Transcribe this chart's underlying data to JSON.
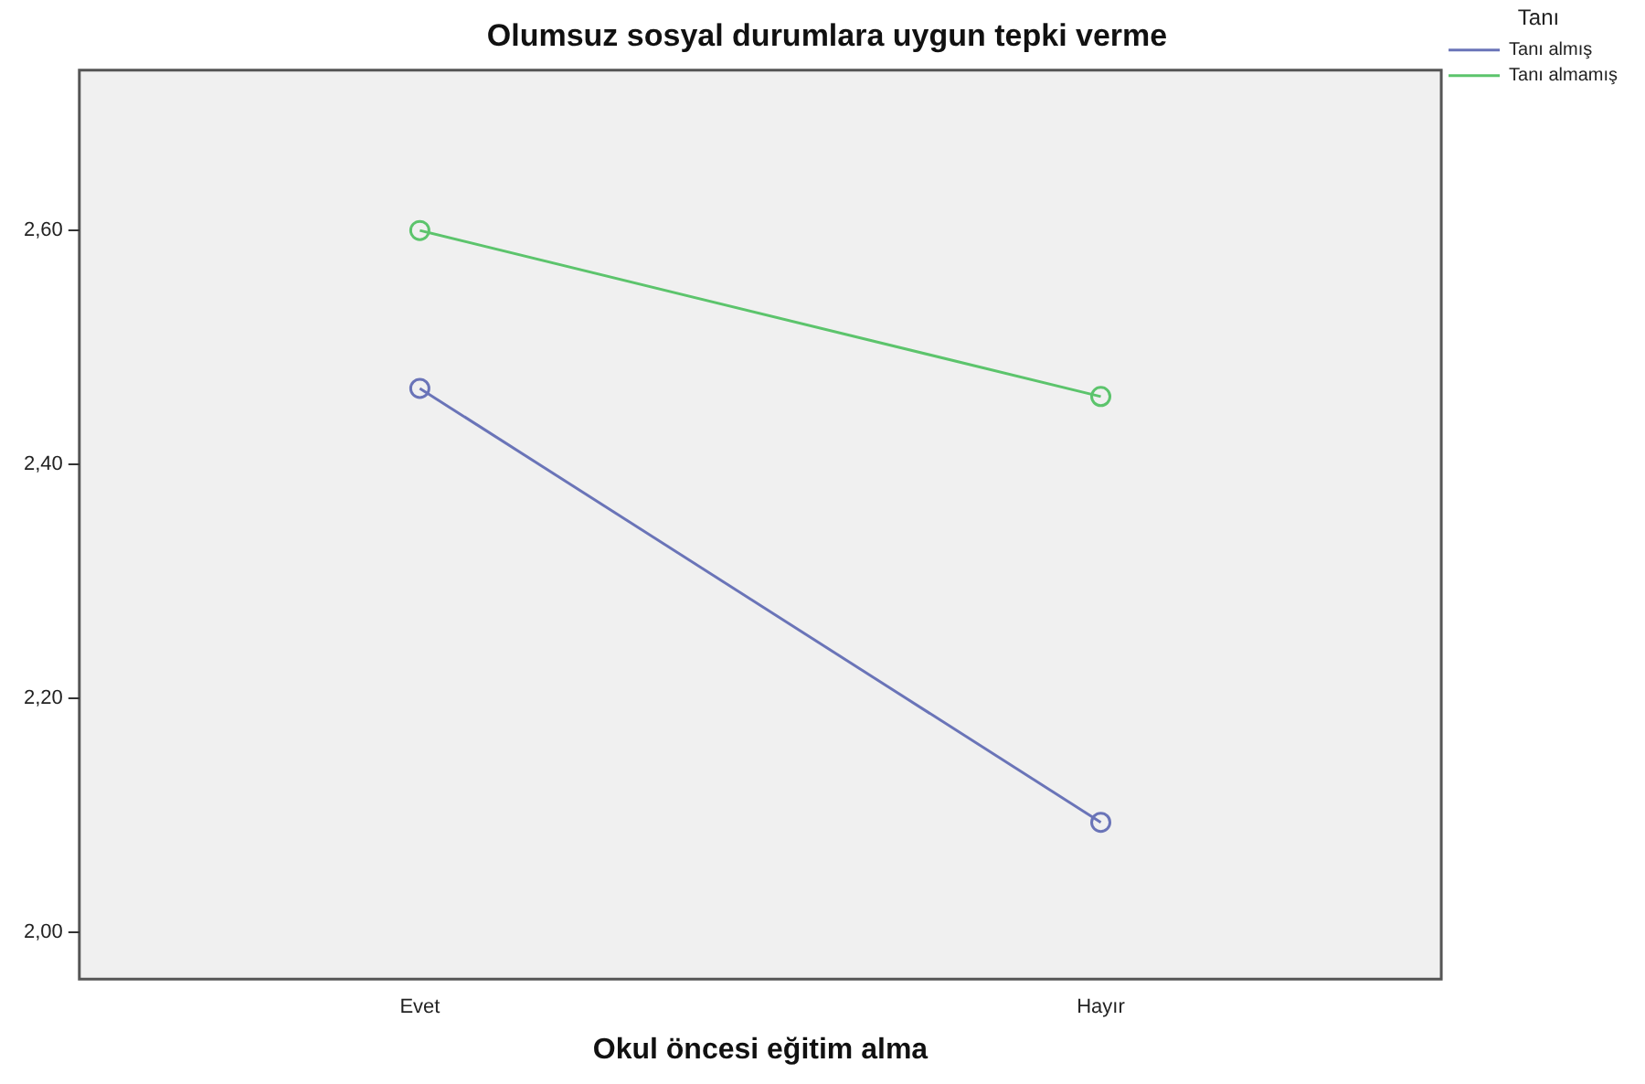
{
  "chart_data": {
    "type": "line",
    "title": "Olumsuz sosyal durumlara uygun tepki verme",
    "xlabel": "Okul öncesi eğitim alma",
    "legend_title": "Tanı",
    "categories": [
      "Evet",
      "Hayır"
    ],
    "series": [
      {
        "name": "Tanı almış",
        "color": "#6a74b8",
        "values": [
          2.465,
          2.094
        ]
      },
      {
        "name": "Tanı almamış",
        "color": "#5cc46c",
        "values": [
          2.6,
          2.458
        ]
      }
    ],
    "ylim": [
      1.96,
      2.737
    ],
    "yticks": [
      {
        "value": 2.0,
        "label": "2,00"
      },
      {
        "value": 2.2,
        "label": "2,20"
      },
      {
        "value": 2.4,
        "label": "2,40"
      },
      {
        "value": 2.6,
        "label": "2,60"
      }
    ],
    "grid": false,
    "legend": "top right",
    "marker": "circle"
  }
}
